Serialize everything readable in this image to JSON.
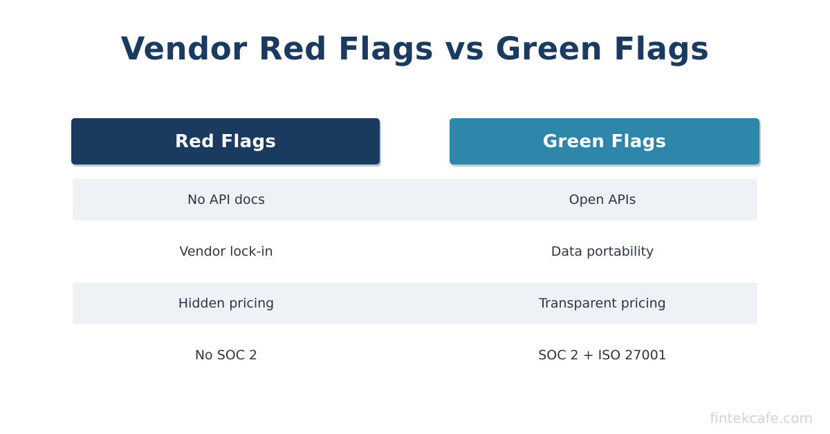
{
  "chart_data": {
    "type": "table",
    "title": "Vendor Red Flags vs Green Flags",
    "columns": [
      {
        "label": "Red Flags",
        "color": "#1b3a5f"
      },
      {
        "label": "Green Flags",
        "color": "#2e86ab"
      }
    ],
    "rows": [
      [
        "No API docs",
        "Open APIs"
      ],
      [
        "Vendor lock-in",
        "Data portability"
      ],
      [
        "Hidden pricing",
        "Transparent pricing"
      ],
      [
        "No SOC 2",
        "SOC 2 + ISO 27001"
      ]
    ]
  },
  "footer": {
    "watermark": "fintekcafe.com"
  },
  "colors": {
    "background": "#ffffff",
    "title_text": "#1b3a5f",
    "header_text": "#ffffff",
    "row_stripe": "#eef1f6",
    "body_text": "#2b3645",
    "button_shadow": "#b9cadb",
    "watermark_text": "#cdd4df"
  }
}
